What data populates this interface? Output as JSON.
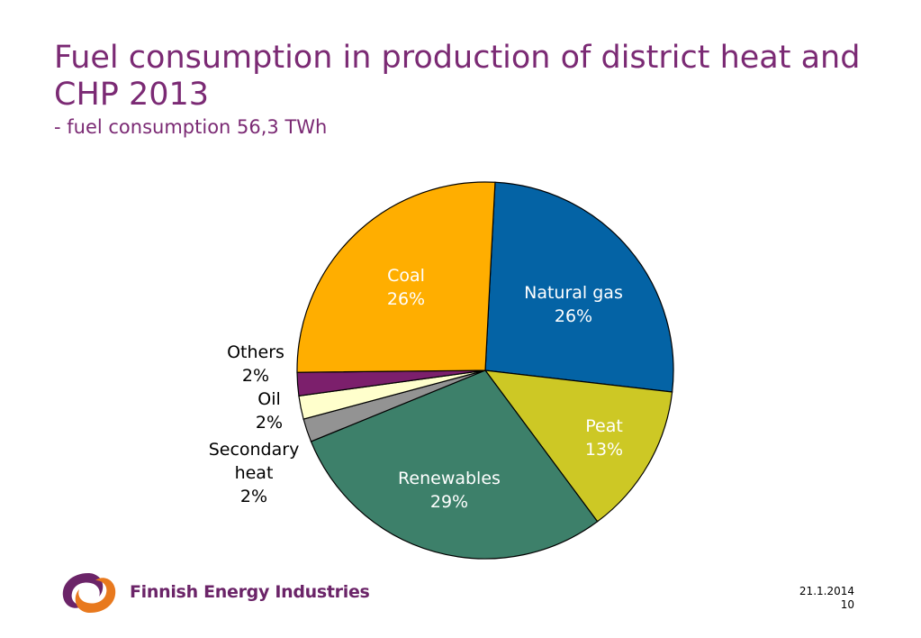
{
  "slide": {
    "title": "Fuel consumption in production of district heat and CHP 2013",
    "subtitle": "- fuel consumption 56,3 TWh",
    "date": "21.1.2014",
    "page_number": "10",
    "brand": "Finnish Energy Industries"
  },
  "colors": {
    "title": "#7b2a74",
    "brand": "#6b2468",
    "logo_orange": "#e8791e"
  },
  "chart_data": {
    "type": "pie",
    "title": "",
    "start_angle_deg": 3,
    "slices": [
      {
        "label": "Natural gas",
        "value": 26,
        "value_label": "26%",
        "color": "#0463a5",
        "label_color": "#ffffff"
      },
      {
        "label": "Peat",
        "value": 13,
        "value_label": "13%",
        "color": "#cdc825",
        "label_color": "#ffffff"
      },
      {
        "label": "Renewables",
        "value": 29,
        "value_label": "29%",
        "color": "#3d806a",
        "label_color": "#ffffff"
      },
      {
        "label": "Secondary heat",
        "value": 2,
        "value_label": "2%",
        "color": "#939393",
        "label_color": "#000000"
      },
      {
        "label": "Oil",
        "value": 2,
        "value_label": "2%",
        "color": "#ffffcc",
        "label_color": "#000000"
      },
      {
        "label": "Others",
        "value": 2,
        "value_label": "2%",
        "color": "#7c1f6c",
        "label_color": "#000000"
      },
      {
        "label": "Coal",
        "value": 26,
        "value_label": "26%",
        "color": "#ffae00",
        "label_color": "#ffffff"
      }
    ]
  }
}
